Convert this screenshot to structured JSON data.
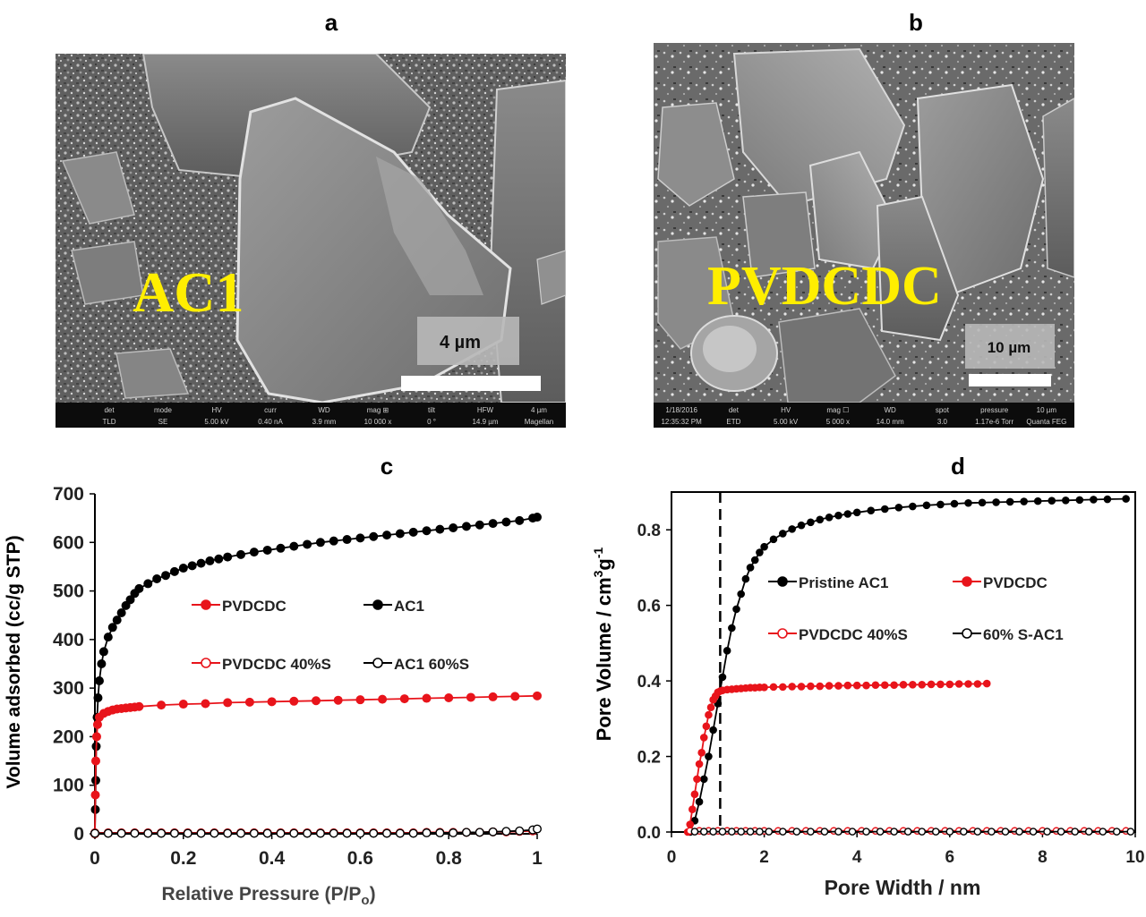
{
  "panels": {
    "a": {
      "letter": "a",
      "overlay_label": "AC1",
      "scale_label": "4 µm",
      "infobar": {
        "row1": [
          "det",
          "mode",
          "HV",
          "curr",
          "WD",
          "mag ⊞",
          "tilt",
          "HFW",
          "4 µm"
        ],
        "row2": [
          "TLD",
          "SE",
          "5.00 kV",
          "0.40 nA",
          "3.9 mm",
          "10 000 x",
          "0 °",
          "14.9 µm",
          "Magellan"
        ]
      }
    },
    "b": {
      "letter": "b",
      "overlay_label": "PVDCDC",
      "scale_label": "10 µm",
      "infobar": {
        "row1": [
          "1/18/2016",
          "det",
          "HV",
          "mag ☐",
          "WD",
          "spot",
          "pressure",
          "10 µm"
        ],
        "row2": [
          "12:35:32 PM",
          "ETD",
          "5.00 kV",
          "5 000 x",
          "14.0 mm",
          "3.0",
          "1.17e-6 Torr",
          "Quanta FEG"
        ]
      }
    },
    "c": {
      "letter": "c"
    },
    "d": {
      "letter": "d"
    }
  },
  "chart_data": [
    {
      "id": "c",
      "type": "line",
      "title": "c",
      "xlabel": "Relative Pressure (P/P",
      "xlabel_sub": "o",
      "xlabel_end": ")",
      "ylabel": "Volume adsorbed (cc/g STP)",
      "xlim": [
        0,
        1
      ],
      "ylim": [
        0,
        700
      ],
      "xticks": [
        "0",
        "0.2",
        "0.4",
        "0.6",
        "0.8",
        "1"
      ],
      "yticks": [
        "0",
        "100",
        "200",
        "300",
        "400",
        "500",
        "600",
        "700"
      ],
      "grid": false,
      "legend": [
        "PVDCDC",
        "AC1",
        "PVDCDC 40%S",
        "AC1 60%S"
      ],
      "series": [
        {
          "name": "AC1",
          "color": "#000000",
          "marker": "filled",
          "x": [
            0,
            0.001,
            0.002,
            0.003,
            0.005,
            0.007,
            0.01,
            0.015,
            0.02,
            0.03,
            0.04,
            0.05,
            0.06,
            0.07,
            0.08,
            0.09,
            0.1,
            0.12,
            0.14,
            0.16,
            0.18,
            0.2,
            0.22,
            0.24,
            0.26,
            0.28,
            0.3,
            0.33,
            0.36,
            0.39,
            0.42,
            0.45,
            0.48,
            0.51,
            0.54,
            0.57,
            0.6,
            0.63,
            0.66,
            0.69,
            0.72,
            0.75,
            0.78,
            0.81,
            0.84,
            0.87,
            0.9,
            0.93,
            0.96,
            0.99,
            1.0
          ],
          "y": [
            0,
            50,
            110,
            180,
            240,
            280,
            315,
            350,
            375,
            405,
            425,
            440,
            455,
            470,
            482,
            495,
            505,
            515,
            525,
            532,
            540,
            547,
            552,
            557,
            562,
            566,
            570,
            575,
            580,
            584,
            588,
            592,
            596,
            600,
            603,
            606,
            609,
            612,
            615,
            618,
            621,
            624,
            627,
            630,
            633,
            636,
            639,
            642,
            645,
            650,
            652
          ]
        },
        {
          "name": "PVDCDC",
          "color": "#e8141b",
          "marker": "filled",
          "x": [
            0,
            0.001,
            0.002,
            0.004,
            0.006,
            0.01,
            0.02,
            0.03,
            0.04,
            0.05,
            0.06,
            0.07,
            0.08,
            0.09,
            0.1,
            0.15,
            0.2,
            0.25,
            0.3,
            0.35,
            0.4,
            0.45,
            0.5,
            0.55,
            0.6,
            0.65,
            0.7,
            0.75,
            0.8,
            0.85,
            0.9,
            0.95,
            1.0
          ],
          "y": [
            0,
            80,
            150,
            200,
            225,
            240,
            248,
            252,
            255,
            257,
            258,
            259,
            260,
            261,
            262,
            265,
            267,
            268,
            270,
            271,
            272,
            273,
            274,
            275,
            276,
            277,
            278,
            279,
            280,
            281,
            282,
            283,
            284
          ]
        },
        {
          "name": "PVDCDC 40%S",
          "color": "#e8141b",
          "marker": "open",
          "x": [
            0,
            0.03,
            0.06,
            0.09,
            0.12,
            0.15,
            0.18,
            0.21,
            0.24,
            0.27,
            0.3,
            0.33,
            0.36,
            0.39,
            0.42,
            0.45,
            0.48,
            0.51,
            0.54,
            0.57,
            0.6,
            0.63,
            0.66,
            0.69,
            0.72,
            0.75,
            0.78,
            0.81,
            0.84,
            0.87,
            0.9,
            0.93,
            0.96,
            0.99
          ],
          "y": [
            2,
            2,
            2,
            2,
            2,
            2,
            2,
            2,
            2,
            2,
            2,
            2,
            2,
            2,
            2,
            2,
            2,
            2,
            2,
            2,
            2,
            2,
            2,
            2,
            2,
            3,
            3,
            3,
            3,
            3,
            4,
            4,
            5,
            6
          ]
        },
        {
          "name": "AC1 60%S",
          "color": "#000000",
          "marker": "open",
          "x": [
            0,
            0.03,
            0.06,
            0.09,
            0.12,
            0.15,
            0.18,
            0.21,
            0.24,
            0.27,
            0.3,
            0.33,
            0.36,
            0.39,
            0.42,
            0.45,
            0.48,
            0.51,
            0.54,
            0.57,
            0.6,
            0.63,
            0.66,
            0.69,
            0.72,
            0.75,
            0.78,
            0.81,
            0.84,
            0.87,
            0.9,
            0.93,
            0.96,
            0.99,
            1.0
          ],
          "y": [
            1,
            1,
            1,
            1,
            1,
            1,
            1,
            1,
            1,
            1,
            1,
            1,
            1,
            1,
            1,
            1,
            1,
            1,
            1,
            1,
            1,
            1,
            1,
            1,
            1,
            2,
            2,
            2,
            3,
            3,
            4,
            5,
            6,
            8,
            10
          ]
        }
      ]
    },
    {
      "id": "d",
      "type": "line",
      "title": "d",
      "xlabel": "Pore Width / nm",
      "ylabel": "Pore Volume / cm",
      "ylabel_sup1": "3",
      "ylabel_mid": "g",
      "ylabel_sup2": "-1",
      "xlim": [
        0,
        10
      ],
      "ylim": [
        0,
        0.9
      ],
      "xticks": [
        "0",
        "2",
        "4",
        "6",
        "8",
        "10"
      ],
      "yticks": [
        "0.0",
        "0.2",
        "0.4",
        "0.6",
        "0.8"
      ],
      "grid": false,
      "vline_x": 1.05,
      "legend": [
        "Pristine AC1",
        "PVDCDC",
        "PVDCDC 40%S",
        "60% S-AC1"
      ],
      "series": [
        {
          "name": "Pristine AC1",
          "color": "#000000",
          "marker": "filled",
          "x": [
            0.4,
            0.5,
            0.6,
            0.7,
            0.8,
            0.9,
            1.0,
            1.1,
            1.2,
            1.3,
            1.4,
            1.5,
            1.6,
            1.7,
            1.8,
            1.9,
            2.0,
            2.2,
            2.4,
            2.6,
            2.8,
            3.0,
            3.2,
            3.4,
            3.6,
            3.8,
            4.0,
            4.3,
            4.6,
            4.9,
            5.2,
            5.5,
            5.8,
            6.1,
            6.4,
            6.7,
            7.0,
            7.3,
            7.6,
            7.9,
            8.2,
            8.5,
            8.8,
            9.1,
            9.4,
            9.8
          ],
          "y": [
            0,
            0.03,
            0.08,
            0.14,
            0.2,
            0.27,
            0.34,
            0.41,
            0.48,
            0.54,
            0.59,
            0.63,
            0.67,
            0.7,
            0.72,
            0.74,
            0.755,
            0.775,
            0.79,
            0.802,
            0.812,
            0.82,
            0.827,
            0.833,
            0.838,
            0.842,
            0.846,
            0.851,
            0.855,
            0.859,
            0.862,
            0.865,
            0.867,
            0.869,
            0.871,
            0.872,
            0.873,
            0.874,
            0.875,
            0.876,
            0.877,
            0.878,
            0.879,
            0.88,
            0.881,
            0.882
          ]
        },
        {
          "name": "PVDCDC",
          "color": "#e8141b",
          "marker": "filled",
          "x": [
            0.35,
            0.4,
            0.45,
            0.5,
            0.55,
            0.6,
            0.65,
            0.7,
            0.75,
            0.8,
            0.85,
            0.9,
            0.95,
            1.0,
            1.05,
            1.1,
            1.2,
            1.3,
            1.4,
            1.5,
            1.6,
            1.7,
            1.8,
            1.9,
            2.0,
            2.2,
            2.4,
            2.6,
            2.8,
            3.0,
            3.2,
            3.4,
            3.6,
            3.8,
            4.0,
            4.2,
            4.4,
            4.6,
            4.8,
            5.0,
            5.2,
            5.4,
            5.6,
            5.8,
            6.0,
            6.2,
            6.4,
            6.6,
            6.8
          ],
          "y": [
            0,
            0.02,
            0.06,
            0.1,
            0.14,
            0.18,
            0.21,
            0.25,
            0.28,
            0.31,
            0.33,
            0.35,
            0.36,
            0.37,
            0.373,
            0.375,
            0.377,
            0.378,
            0.379,
            0.38,
            0.381,
            0.382,
            0.382,
            0.383,
            0.383,
            0.384,
            0.384,
            0.385,
            0.385,
            0.386,
            0.386,
            0.387,
            0.387,
            0.388,
            0.388,
            0.388,
            0.389,
            0.389,
            0.389,
            0.39,
            0.39,
            0.39,
            0.391,
            0.391,
            0.391,
            0.392,
            0.392,
            0.392,
            0.393
          ]
        },
        {
          "name": "PVDCDC 40%S",
          "color": "#e8141b",
          "marker": "open",
          "x": [
            0.4,
            0.6,
            0.8,
            1.0,
            1.2,
            1.4,
            1.6,
            1.8,
            2.0,
            2.3,
            2.6,
            2.9,
            3.2,
            3.5,
            3.8,
            4.1,
            4.4,
            4.7,
            5.0,
            5.3,
            5.6,
            5.9,
            6.2,
            6.5,
            6.8,
            7.1,
            7.4,
            7.7,
            8.0,
            8.3,
            8.6,
            8.9,
            9.2,
            9.5,
            9.8
          ],
          "y": [
            0.003,
            0.003,
            0.003,
            0.003,
            0.003,
            0.003,
            0.003,
            0.003,
            0.003,
            0.003,
            0.003,
            0.003,
            0.003,
            0.003,
            0.003,
            0.003,
            0.003,
            0.003,
            0.003,
            0.003,
            0.003,
            0.003,
            0.003,
            0.003,
            0.003,
            0.003,
            0.003,
            0.003,
            0.003,
            0.003,
            0.003,
            0.003,
            0.003,
            0.003,
            0.003
          ]
        },
        {
          "name": "60% S-AC1",
          "color": "#000000",
          "marker": "open",
          "x": [
            0.5,
            0.7,
            0.9,
            1.1,
            1.3,
            1.5,
            1.7,
            1.9,
            2.1,
            2.4,
            2.7,
            3.0,
            3.3,
            3.6,
            3.9,
            4.2,
            4.5,
            4.8,
            5.1,
            5.4,
            5.7,
            6.0,
            6.3,
            6.6,
            6.9,
            7.2,
            7.5,
            7.8,
            8.1,
            8.4,
            8.7,
            9.0,
            9.3,
            9.6,
            9.9
          ],
          "y": [
            0.001,
            0.001,
            0.001,
            0.001,
            0.001,
            0.001,
            0.001,
            0.001,
            0.001,
            0.001,
            0.001,
            0.001,
            0.001,
            0.001,
            0.001,
            0.001,
            0.001,
            0.001,
            0.001,
            0.001,
            0.001,
            0.001,
            0.001,
            0.001,
            0.001,
            0.001,
            0.001,
            0.001,
            0.001,
            0.001,
            0.001,
            0.001,
            0.001,
            0.001,
            0.001
          ]
        }
      ]
    }
  ]
}
